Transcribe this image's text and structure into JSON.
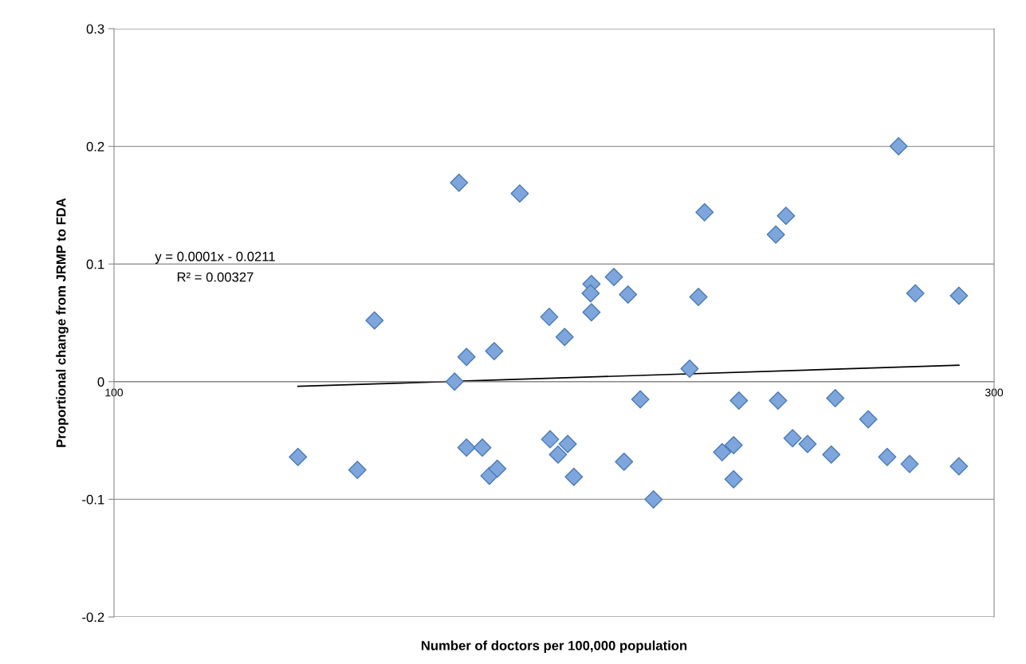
{
  "chart_data": {
    "type": "scatter",
    "xlabel": "Number of doctors per 100,000 population",
    "ylabel": "Proportional change from JRMP to FDA",
    "annotations": [
      "y = 0.0001x - 0.0211",
      "R² = 0.00327"
    ],
    "xlim": [
      100,
      300
    ],
    "xticks": [
      100,
      300
    ],
    "ylim": [
      -0.2,
      0.3
    ],
    "yticks": [
      -0.2,
      -0.1,
      0,
      0.1,
      0.2,
      0.3
    ],
    "grid": "y",
    "marker": "diamond",
    "series": [
      {
        "color": "#7ea6dc",
        "x": [
          141.8,
          155.3,
          159.2,
          177.4,
          178.4,
          180.1,
          180.1,
          183.7,
          185.3,
          186.4,
          187.1,
          192.2,
          198.9,
          199.1,
          200.9,
          202.4,
          203.1,
          204.5,
          208.5,
          208.3,
          208.5,
          213.6,
          216.8,
          215.9,
          219.6,
          222.6,
          230.8,
          232.8,
          234.2,
          238.2,
          240.8,
          240.8,
          242.0,
          250.4,
          250.9,
          252.7,
          254.2,
          257.6,
          263.0,
          263.9,
          271.4,
          275.7,
          278.3,
          280.8,
          282.1,
          292.0,
          292.0
        ],
        "values": [
          -0.064,
          -0.075,
          0.052,
          0.0,
          0.169,
          0.021,
          -0.056,
          -0.056,
          -0.08,
          0.026,
          -0.074,
          0.16,
          0.055,
          -0.049,
          -0.062,
          0.038,
          -0.053,
          -0.081,
          0.083,
          0.075,
          0.059,
          0.089,
          0.074,
          -0.068,
          -0.015,
          -0.1,
          0.011,
          0.072,
          0.144,
          -0.06,
          -0.054,
          -0.083,
          -0.016,
          0.125,
          -0.016,
          0.141,
          -0.048,
          -0.053,
          -0.062,
          -0.014,
          -0.032,
          -0.064,
          0.2,
          -0.07,
          0.075,
          0.073,
          -0.072
        ]
      },
      {
        "type": "line",
        "marker": "none",
        "color": "#000000",
        "x": [
          141.8,
          292.0
        ],
        "values": [
          -0.004,
          0.014
        ]
      }
    ]
  }
}
